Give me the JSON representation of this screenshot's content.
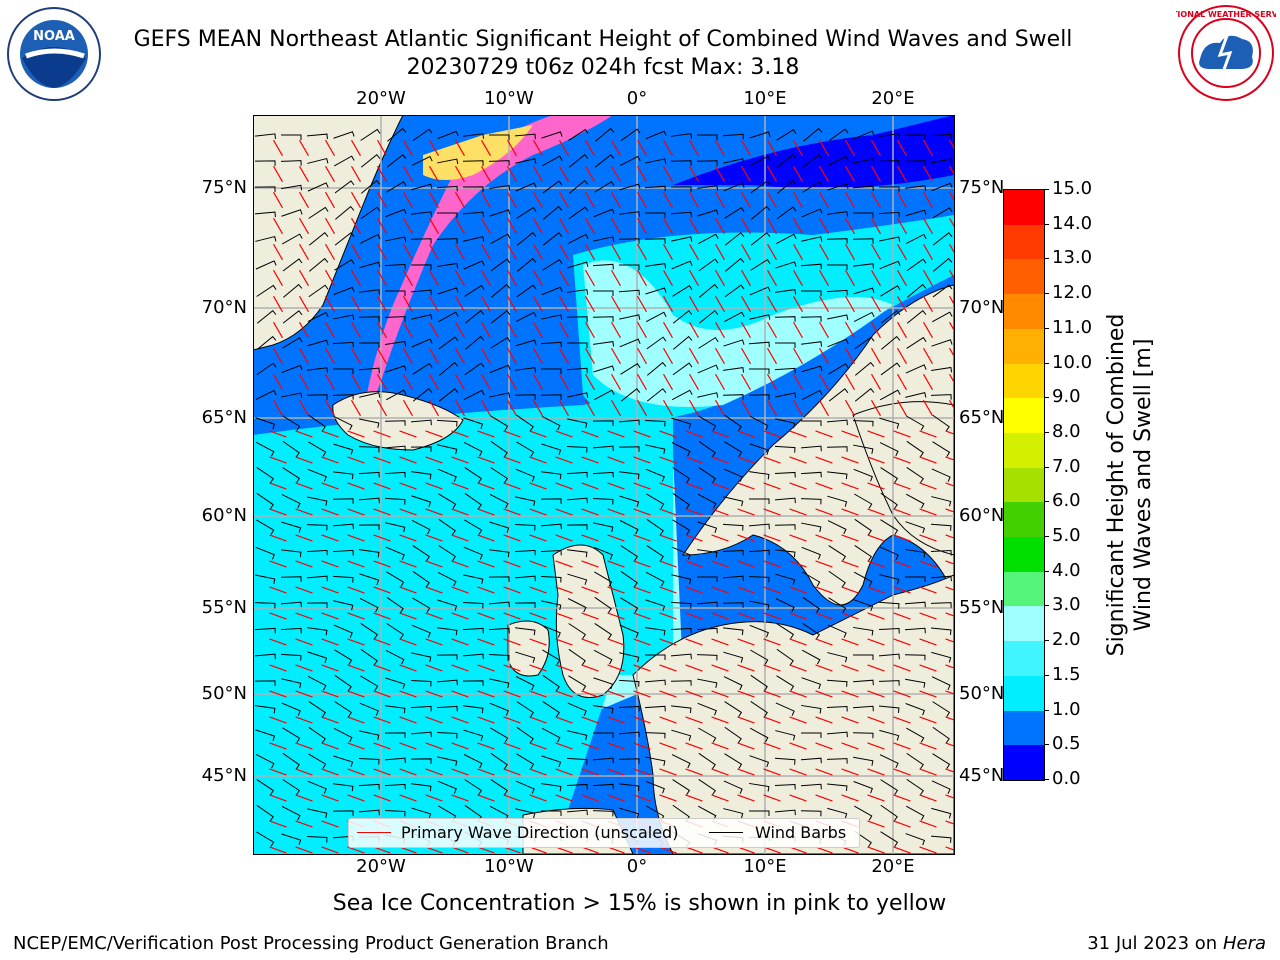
{
  "title": {
    "line1": "GEFS MEAN Northeast Atlantic Significant Height of Combined Wind Waves and Swell",
    "line2": "20230729 t06z 024h fcst   Max: 3.18"
  },
  "colorbar": {
    "label_line1": "Significant Height of Combined",
    "label_line2": "Wind Waves and Swell [m]",
    "ticks": [
      "0.0",
      "0.5",
      "1.0",
      "1.5",
      "2.0",
      "3.0",
      "4.0",
      "5.0",
      "6.0",
      "7.0",
      "8.0",
      "9.0",
      "10.0",
      "11.0",
      "12.0",
      "13.0",
      "14.0",
      "15.0"
    ],
    "colors": [
      "#0000ff",
      "#0073ff",
      "#00eeff",
      "#40f5ff",
      "#a0ffff",
      "#54f57a",
      "#00e000",
      "#44d000",
      "#a6e000",
      "#d2f000",
      "#ffff00",
      "#ffd500",
      "#ffb000",
      "#ff8a00",
      "#ff5f00",
      "#ff3a00",
      "#ff0000"
    ]
  },
  "axes": {
    "lon_top": [
      "20°W",
      "10°W",
      "0°",
      "10°E",
      "20°E"
    ],
    "lon_bottom": [
      "20°W",
      "10°W",
      "0°",
      "10°E",
      "20°E"
    ],
    "lat_left": [
      "75°N",
      "70°N",
      "65°N",
      "60°N",
      "55°N",
      "50°N",
      "45°N"
    ],
    "lat_right": [
      "75°N",
      "70°N",
      "65°N",
      "60°N",
      "55°N",
      "50°N",
      "45°N"
    ]
  },
  "legend": {
    "wave_direction": "Primary Wave Direction (unscaled)",
    "wind_barbs": "Wind Barbs",
    "wave_color": "#ff0000",
    "barb_color": "#000000"
  },
  "note": "Sea Ice Concentration > 15% is shown in pink to yellow",
  "footer": {
    "left": "NCEP/EMC/Verification Post Processing Product Generation Branch",
    "right_date": "31 Jul 2023 on ",
    "right_host": "Hera"
  },
  "logos": {
    "noaa_text": "NOAA",
    "nws_text": "NATIONAL WEATHER SERVICE"
  },
  "map_colors": {
    "land": "#efeddc",
    "ocean_low": "#0073ff",
    "ocean_lowest": "#0000ff",
    "ocean_mid": "#00eeff",
    "ocean_high": "#a0ffff",
    "ice": "#ff66cc",
    "grid": "#b0b0b0"
  }
}
